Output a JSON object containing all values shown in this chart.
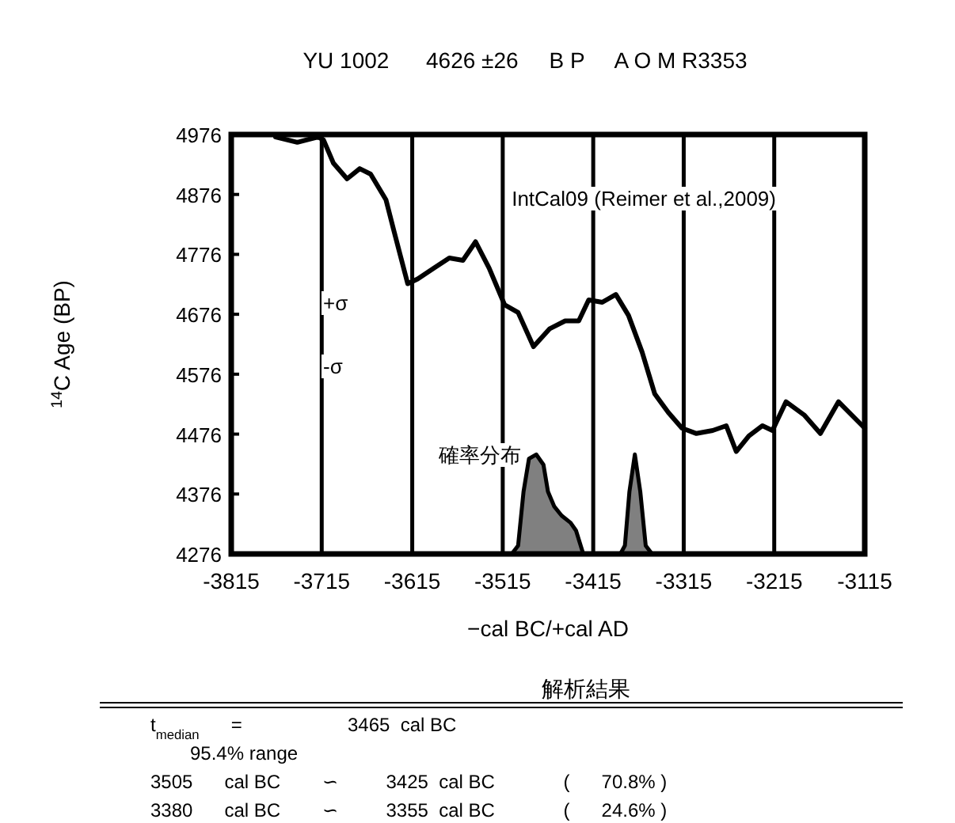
{
  "chart_data": {
    "type": "line",
    "title": "YU 1002      4626 ±26     B P     A O M R3353",
    "xlabel": "−cal BC/+cal AD",
    "ylabel": "$^{14}$C Age (BP)",
    "xlim": [
      -3815,
      -3115
    ],
    "xticks": [
      -3815,
      -3715,
      -3615,
      -3515,
      -3415,
      -3315,
      -3215,
      -3115
    ],
    "ylim": [
      4276,
      4976
    ],
    "yticks": [
      4276,
      4376,
      4476,
      4576,
      4676,
      4776,
      4876,
      4976
    ],
    "grid": "x",
    "marker": "none",
    "line_style": "solid",
    "series": [
      {
        "color": "#000000",
        "x": [
          -3766,
          -3742,
          -3719,
          -3713,
          -3702,
          -3687,
          -3673,
          -3661,
          -3644,
          -3635,
          -3620,
          -3609,
          -3591,
          -3574,
          -3559,
          -3545,
          -3530,
          -3513,
          -3498,
          -3481,
          -3463,
          -3446,
          -3431,
          -3420,
          -3405,
          -3390,
          -3376,
          -3361,
          -3347,
          -3332,
          -3317,
          -3301,
          -3283,
          -3268,
          -3257,
          -3243,
          -3228,
          -3217,
          -3202,
          -3182,
          -3164,
          -3144,
          -3115
        ],
        "values": [
          4972,
          4963,
          4972,
          4967,
          4928,
          4902,
          4919,
          4910,
          4867,
          4814,
          4727,
          4735,
          4753,
          4770,
          4766,
          4797,
          4753,
          4692,
          4679,
          4622,
          4652,
          4665,
          4665,
          4700,
          4696,
          4709,
          4674,
          4613,
          4543,
          4512,
          4486,
          4477,
          4482,
          4490,
          4447,
          4473,
          4490,
          4482,
          4530,
          4508,
          4477,
          4530,
          4486
        ]
      },
      {
        "type": "area",
        "color": "#808080",
        "x": [
          -3505,
          -3498,
          -3492,
          -3486,
          -3478,
          -3470,
          -3465,
          -3458,
          -3450,
          -3440,
          -3434,
          -3426
        ],
        "values": [
          4276,
          4290,
          4380,
          4435,
          4442,
          4425,
          4380,
          4355,
          4340,
          4328,
          4315,
          4276
        ]
      },
      {
        "type": "area",
        "color": "#808080",
        "x": [
          -3385,
          -3380,
          -3375,
          -3369,
          -3363,
          -3357,
          -3350
        ],
        "values": [
          4276,
          4290,
          4380,
          4442,
          4380,
          4290,
          4276
        ]
      }
    ],
    "annotations": [
      "IntCal09 (Reimer et al.,2009)",
      "確率分布",
      "+σ",
      "-σ",
      "解析結果",
      "t$_{median}$      =                    3465  cal BC",
      "95.4% range",
      "3505      cal BC        ∽         3425  cal BC             (      70.8% )",
      "3380      cal BC        ∽         3355  cal BC             (      24.6% )"
    ]
  }
}
